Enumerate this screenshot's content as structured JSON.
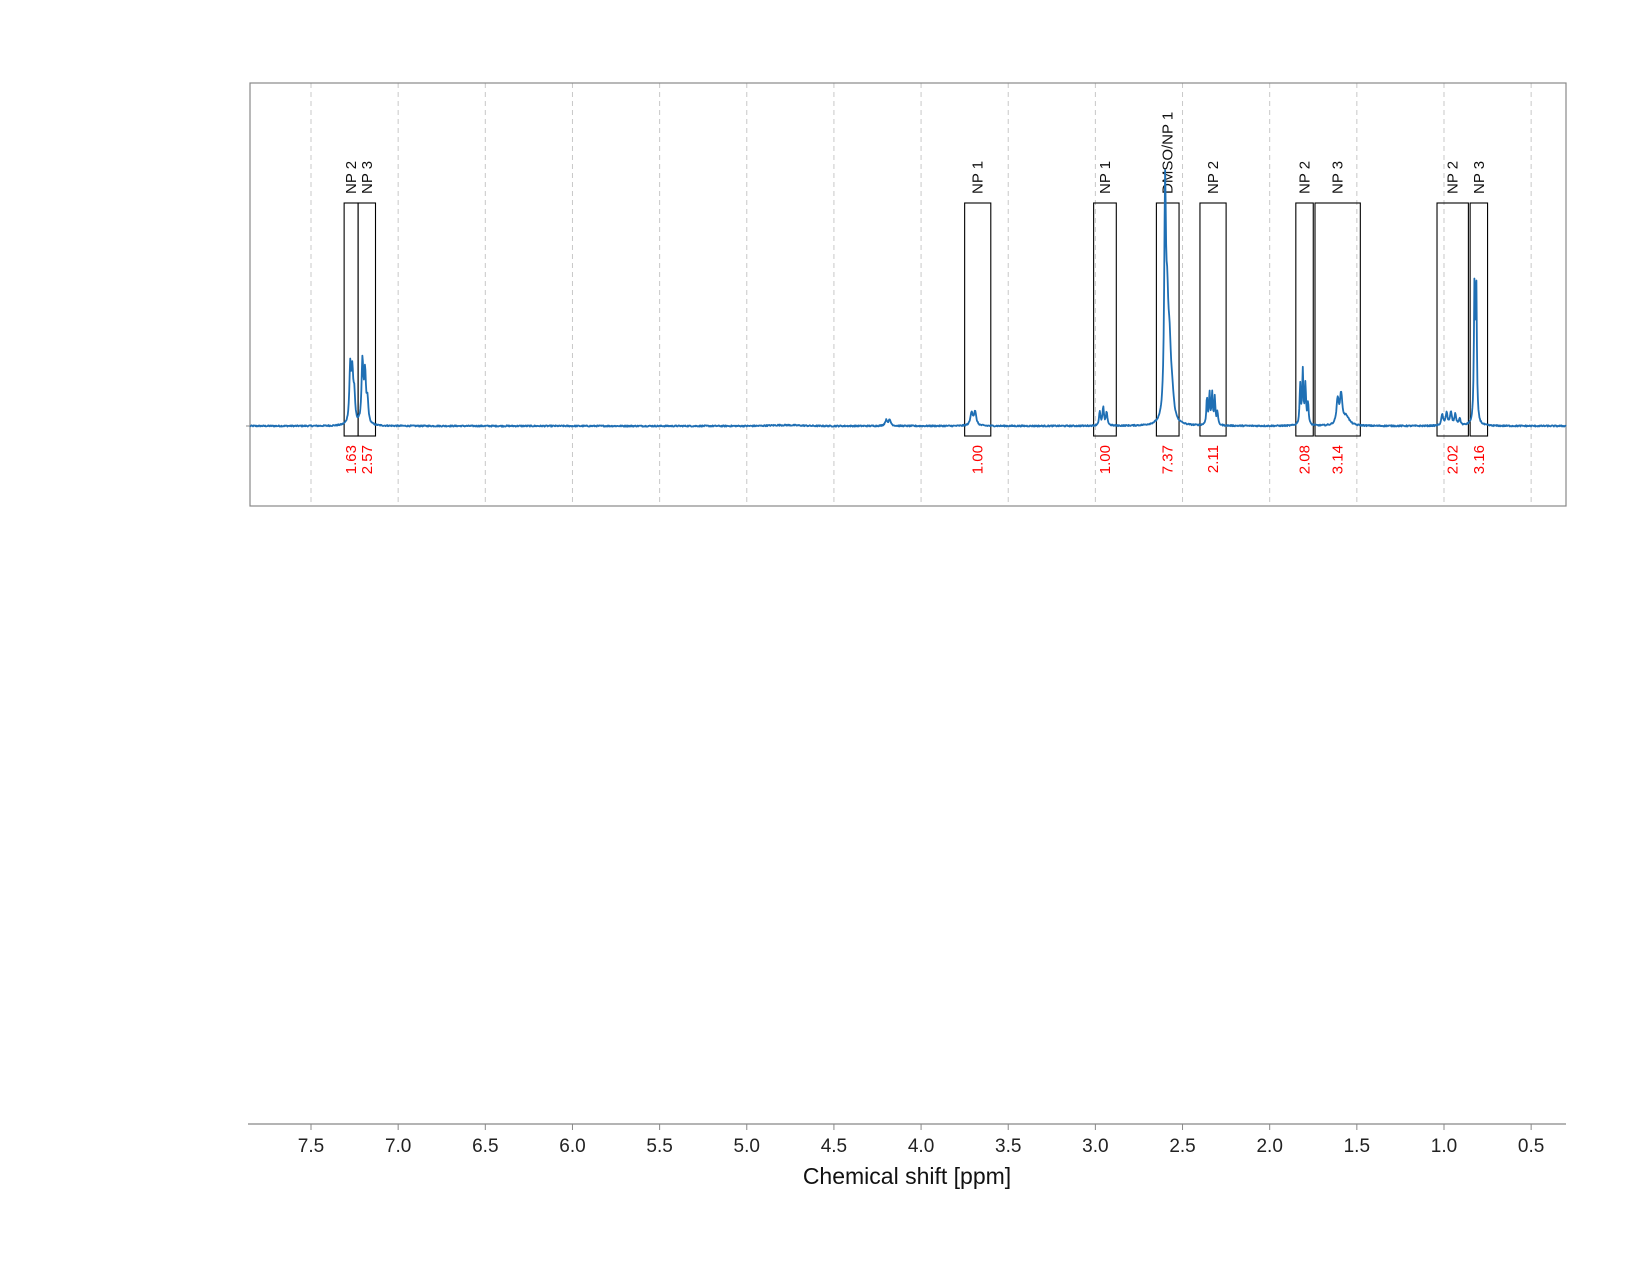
{
  "chart_data": {
    "type": "line",
    "title": "",
    "xlabel": "Chemical shift [ppm]",
    "ylabel": "",
    "xlim": [
      7.85,
      0.3
    ],
    "x_reversed": true,
    "x_ticks": [
      7.5,
      7.0,
      6.5,
      6.0,
      5.5,
      5.0,
      4.5,
      4.0,
      3.5,
      3.0,
      2.5,
      2.0,
      1.5,
      1.0,
      0.5
    ],
    "x_tick_labels": [
      "7.5",
      "7.0",
      "6.5",
      "6.0",
      "5.5",
      "5.0",
      "4.5",
      "4.0",
      "3.5",
      "3.0",
      "2.5",
      "2.0",
      "1.5",
      "1.0",
      "0.5"
    ],
    "grid": "vertical dashed",
    "line_color": "#1f6fb4",
    "integral_color": "#ff0000",
    "series": [
      {
        "peaks": [
          {
            "ppm": 7.275,
            "height": 0.25,
            "width": 0.006
          },
          {
            "ppm": 7.263,
            "height": 0.21,
            "width": 0.006
          },
          {
            "ppm": 7.252,
            "height": 0.12,
            "width": 0.006
          },
          {
            "ppm": 7.205,
            "height": 0.28,
            "width": 0.006
          },
          {
            "ppm": 7.19,
            "height": 0.22,
            "width": 0.006
          },
          {
            "ppm": 7.176,
            "height": 0.1,
            "width": 0.006
          },
          {
            "ppm": 4.2,
            "height": 0.025,
            "width": 0.008
          },
          {
            "ppm": 4.18,
            "height": 0.025,
            "width": 0.008
          },
          {
            "ppm": 3.71,
            "height": 0.06,
            "width": 0.008
          },
          {
            "ppm": 3.69,
            "height": 0.06,
            "width": 0.008
          },
          {
            "ppm": 2.975,
            "height": 0.06,
            "width": 0.005
          },
          {
            "ppm": 2.955,
            "height": 0.08,
            "width": 0.005
          },
          {
            "ppm": 2.935,
            "height": 0.06,
            "width": 0.005
          },
          {
            "ppm": 2.6,
            "height": 0.98,
            "width": 0.006
          },
          {
            "ppm": 2.588,
            "height": 0.4,
            "width": 0.008
          },
          {
            "ppm": 2.575,
            "height": 0.28,
            "width": 0.01
          },
          {
            "ppm": 2.56,
            "height": 0.1,
            "width": 0.012
          },
          {
            "ppm": 2.36,
            "height": 0.12,
            "width": 0.004
          },
          {
            "ppm": 2.345,
            "height": 0.14,
            "width": 0.004
          },
          {
            "ppm": 2.33,
            "height": 0.14,
            "width": 0.004
          },
          {
            "ppm": 2.315,
            "height": 0.12,
            "width": 0.004
          },
          {
            "ppm": 2.3,
            "height": 0.06,
            "width": 0.004
          },
          {
            "ppm": 1.825,
            "height": 0.18,
            "width": 0.004
          },
          {
            "ppm": 1.81,
            "height": 0.24,
            "width": 0.004
          },
          {
            "ppm": 1.795,
            "height": 0.18,
            "width": 0.004
          },
          {
            "ppm": 1.78,
            "height": 0.1,
            "width": 0.004
          },
          {
            "ppm": 1.61,
            "height": 0.11,
            "width": 0.008
          },
          {
            "ppm": 1.59,
            "height": 0.13,
            "width": 0.008
          },
          {
            "ppm": 1.56,
            "height": 0.04,
            "width": 0.02
          },
          {
            "ppm": 1.01,
            "height": 0.05,
            "width": 0.006
          },
          {
            "ppm": 0.985,
            "height": 0.06,
            "width": 0.006
          },
          {
            "ppm": 0.96,
            "height": 0.06,
            "width": 0.006
          },
          {
            "ppm": 0.935,
            "height": 0.05,
            "width": 0.006
          },
          {
            "ppm": 0.91,
            "height": 0.03,
            "width": 0.006
          },
          {
            "ppm": 0.825,
            "height": 0.6,
            "width": 0.004
          },
          {
            "ppm": 0.815,
            "height": 0.62,
            "width": 0.004
          }
        ]
      }
    ],
    "regions": [
      {
        "label": "NP 2",
        "from": 7.31,
        "to": 7.23,
        "integral": "1.63"
      },
      {
        "label": "NP 3",
        "from": 7.23,
        "to": 7.13,
        "integral": "2.57"
      },
      {
        "label": "NP 1",
        "from": 3.75,
        "to": 3.6,
        "integral": "1.00"
      },
      {
        "label": "NP 1",
        "from": 3.01,
        "to": 2.88,
        "integral": "1.00"
      },
      {
        "label": "DMSO/NP 1",
        "from": 2.65,
        "to": 2.52,
        "integral": "7.37"
      },
      {
        "label": "NP 2",
        "from": 2.4,
        "to": 2.25,
        "integral": "2.11"
      },
      {
        "label": "NP 2",
        "from": 1.85,
        "to": 1.75,
        "integral": "2.08"
      },
      {
        "label": "NP 3",
        "from": 1.74,
        "to": 1.48,
        "integral": "3.14"
      },
      {
        "label": "NP 2",
        "from": 1.04,
        "to": 0.86,
        "integral": "2.02"
      },
      {
        "label": "NP 3",
        "from": 0.85,
        "to": 0.75,
        "integral": "3.16"
      }
    ]
  }
}
